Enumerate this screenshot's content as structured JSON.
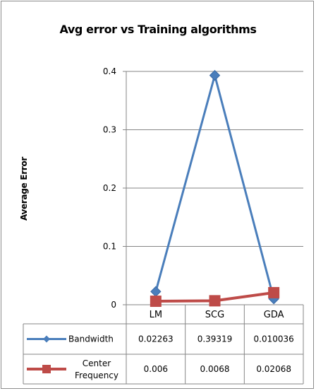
{
  "chart_data": {
    "type": "line",
    "title": "Avg error vs Training algorithms",
    "xlabel": "",
    "ylabel": "Average Error",
    "categories": [
      "LM",
      "SCG",
      "GDA"
    ],
    "ylim": [
      0,
      0.4
    ],
    "yticks": [
      "0",
      "0.1",
      "0.2",
      "0.3",
      "0.4"
    ],
    "grid": true,
    "legend": "data-table",
    "series": [
      {
        "name": "Bandwidth",
        "values": [
          0.02263,
          0.39319,
          0.010036
        ],
        "labels": [
          "0.02263",
          "0.39319",
          "0.010036"
        ],
        "color": "#4a7ebb",
        "marker": "diamond"
      },
      {
        "name": "Center Frequency",
        "name_lines": [
          "Center",
          "Frequency"
        ],
        "values": [
          0.006,
          0.0068,
          0.02068
        ],
        "labels": [
          "0.006",
          "0.0068",
          "0.02068"
        ],
        "color": "#be4b48",
        "marker": "square"
      }
    ]
  }
}
